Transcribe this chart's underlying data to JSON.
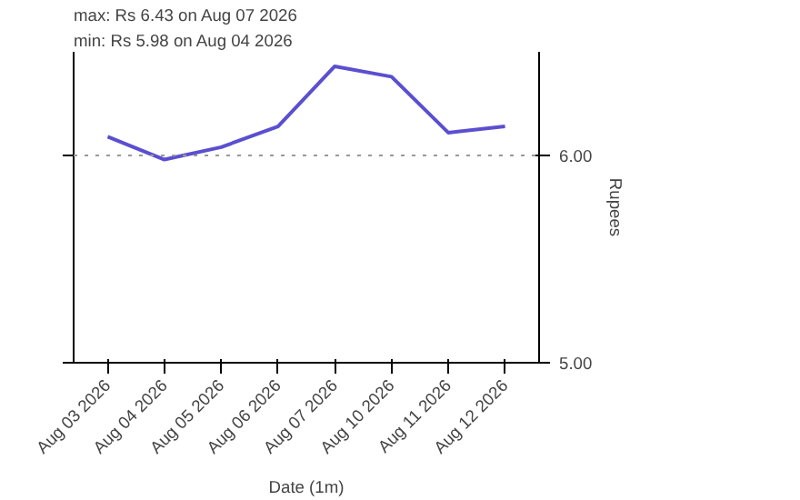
{
  "chart_data": {
    "type": "line",
    "annotations": [
      "max: Rs 6.43 on Aug 07 2026",
      "min: Rs 5.98 on Aug 04 2026"
    ],
    "xlabel": "Date (1m)",
    "ylabel": "Rupees",
    "categories": [
      "Aug 03 2026",
      "Aug 04 2026",
      "Aug 05 2026",
      "Aug 06 2026",
      "Aug 07 2026",
      "Aug 10 2026",
      "Aug 11 2026",
      "Aug 12 2026"
    ],
    "series": [
      {
        "color": "#5b4fd0",
        "values": [
          6.09,
          5.98,
          6.04,
          6.14,
          6.43,
          6.38,
          6.11,
          6.14
        ]
      }
    ],
    "ylim": [
      5.0,
      6.5
    ],
    "yticks": [
      {
        "value": 5,
        "label": "5.00"
      },
      {
        "value": 6,
        "label": "6.00"
      }
    ],
    "ref_lines": [
      {
        "axis": "y",
        "value": 6,
        "color": "#999999",
        "line_style": "dotted"
      }
    ],
    "grid": false,
    "marker": "none",
    "line_style": "solid"
  }
}
